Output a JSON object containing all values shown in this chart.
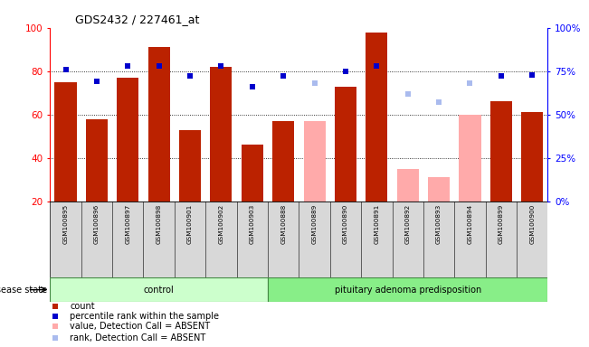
{
  "title": "GDS2432 / 227461_at",
  "samples": [
    "GSM100895",
    "GSM100896",
    "GSM100897",
    "GSM100898",
    "GSM100901",
    "GSM100902",
    "GSM100903",
    "GSM100888",
    "GSM100889",
    "GSM100890",
    "GSM100891",
    "GSM100892",
    "GSM100893",
    "GSM100894",
    "GSM100899",
    "GSM100900"
  ],
  "bar_values": [
    75,
    58,
    77,
    91,
    53,
    82,
    46,
    57,
    57,
    73,
    98,
    35,
    31,
    60,
    66,
    61
  ],
  "bar_absent": [
    false,
    false,
    false,
    false,
    false,
    false,
    false,
    false,
    true,
    false,
    false,
    true,
    true,
    true,
    false,
    false
  ],
  "rank_values": [
    76,
    69,
    78,
    78,
    72,
    78,
    66,
    72,
    68,
    75,
    78,
    62,
    57,
    68,
    72,
    73
  ],
  "rank_absent": [
    false,
    false,
    false,
    false,
    false,
    false,
    false,
    false,
    true,
    false,
    false,
    true,
    true,
    true,
    false,
    false
  ],
  "control_count": 7,
  "ylim_left": [
    20,
    100
  ],
  "right_ticks": [
    0,
    25,
    50,
    75,
    100
  ],
  "right_tick_labels": [
    "0%",
    "25%",
    "50%",
    "75%",
    "100%"
  ],
  "left_ticks": [
    20,
    40,
    60,
    80,
    100
  ],
  "grid_values": [
    40,
    60,
    80
  ],
  "bar_color_present": "#bb2200",
  "bar_color_absent": "#ffaaaa",
  "rank_color_present": "#0000cc",
  "rank_color_absent": "#aabbee",
  "control_bg": "#ccffcc",
  "pituitary_bg": "#88ee88",
  "disease_state_label": "disease state",
  "control_label": "control",
  "pituitary_label": "pituitary adenoma predisposition",
  "legend_items": [
    "count",
    "percentile rank within the sample",
    "value, Detection Call = ABSENT",
    "rank, Detection Call = ABSENT"
  ]
}
